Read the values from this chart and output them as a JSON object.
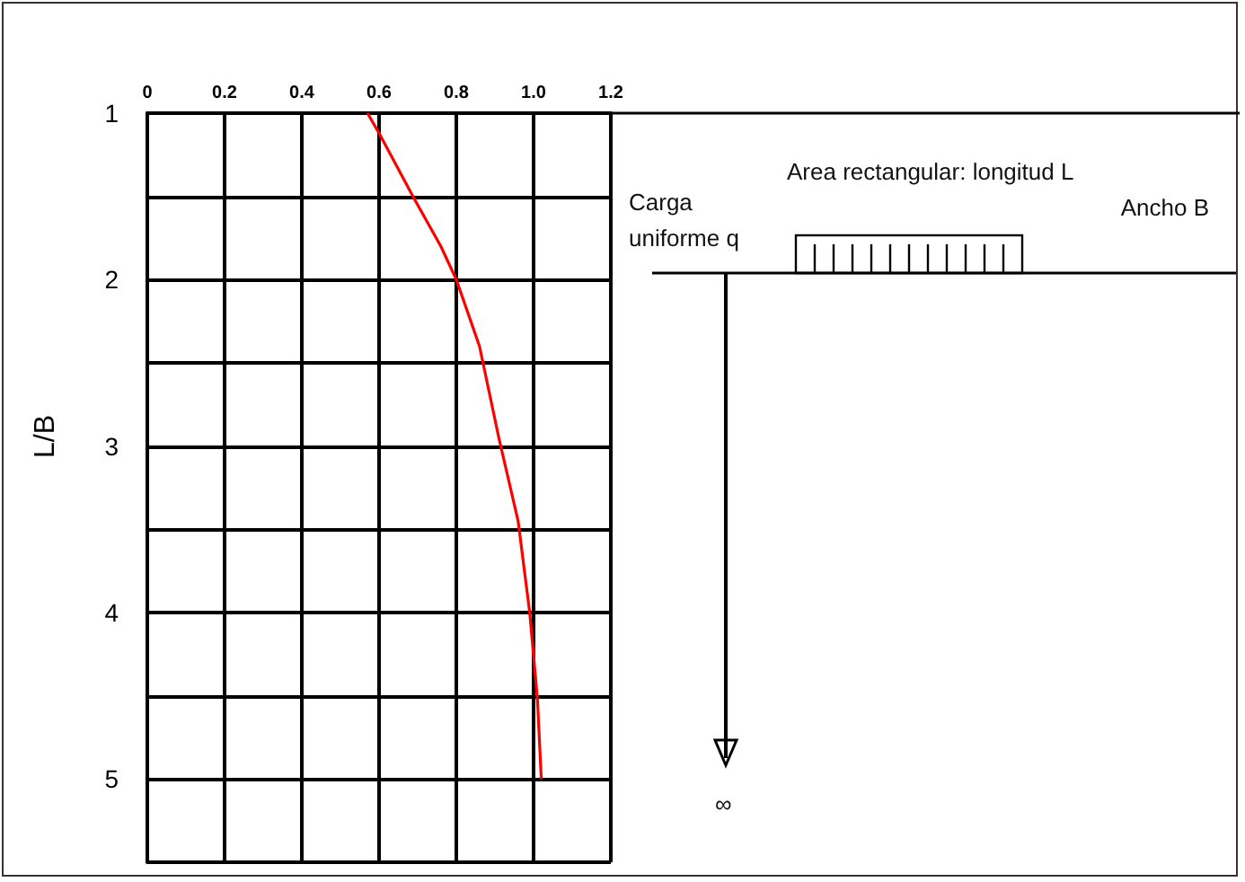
{
  "chart_data": {
    "type": "line",
    "ylabel": "L/B",
    "x": [
      0.57,
      0.6,
      0.69,
      0.76,
      0.8,
      0.86,
      0.91,
      0.96,
      0.99,
      1.01,
      1.02
    ],
    "series": [
      {
        "color": "#ff0000",
        "values": [
          1,
          1.12,
          1.51,
          1.8,
          2.0,
          2.4,
          2.95,
          3.45,
          4.0,
          4.52,
          5.0
        ]
      }
    ],
    "xlim": [
      0,
      1.2
    ],
    "xticks": [
      0,
      0.2,
      0.4,
      0.6,
      0.8,
      {
        "value": 1,
        "label": "1.0"
      },
      1.2
    ],
    "ylim": [
      5.5,
      1
    ],
    "yticks": [
      1,
      {
        "value": 1.5,
        "label": null
      },
      2,
      {
        "value": 2.5,
        "label": null
      },
      3,
      {
        "value": 3.5,
        "label": null
      },
      4,
      {
        "value": 4.5,
        "label": null
      },
      5
    ],
    "grid": true,
    "marker": "none",
    "line_style": "solid",
    "annotations": [
      "Area rectangular:   longitud L",
      "Ancho B",
      "Carga uniforme q",
      "∞"
    ]
  }
}
